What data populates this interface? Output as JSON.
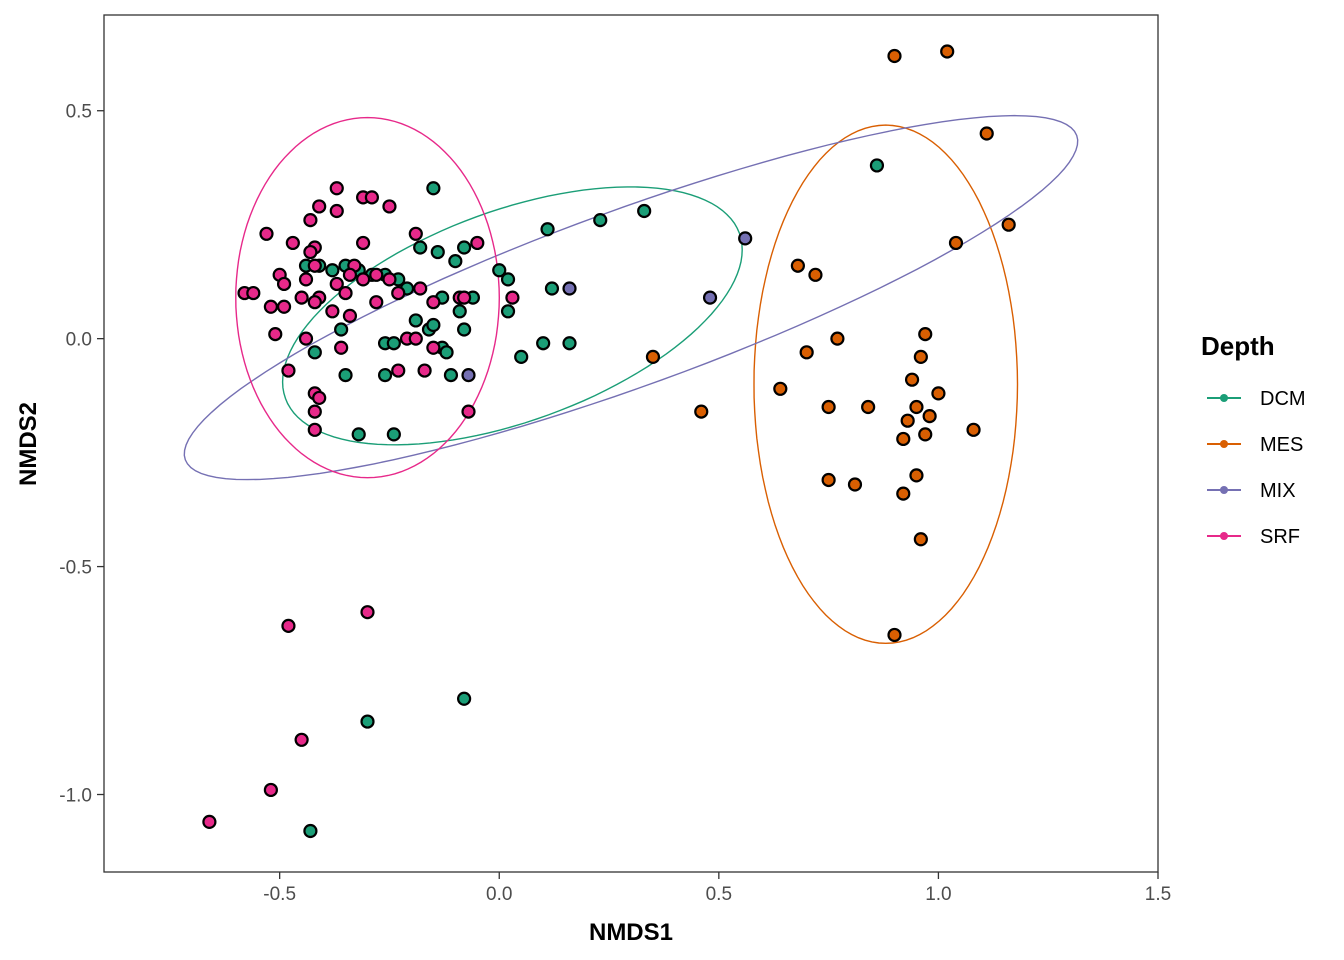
{
  "chart_data": {
    "type": "scatter",
    "xlabel": "NMDS1",
    "ylabel": "NMDS2",
    "xlim": [
      -0.9,
      1.5
    ],
    "ylim": [
      -1.17,
      0.71
    ],
    "x_ticks": [
      -0.5,
      0.0,
      0.5,
      1.0,
      1.5
    ],
    "x_tick_labels": [
      "-0.5",
      "0.0",
      "0.5",
      "1.0",
      "1.5"
    ],
    "y_ticks": [
      -1.0,
      -0.5,
      0.0,
      0.5
    ],
    "y_tick_labels": [
      "-1.0",
      "-0.5",
      "0.0",
      "0.5"
    ],
    "grid": false,
    "legend": {
      "title": "Depth",
      "position": "right"
    },
    "series": [
      {
        "name": "DCM",
        "color": "#1b9e77",
        "points": [
          [
            -0.15,
            0.33
          ],
          [
            0.23,
            0.26
          ],
          [
            0.33,
            0.28
          ],
          [
            0.11,
            0.24
          ],
          [
            0.86,
            0.38
          ],
          [
            -0.44,
            0.16
          ],
          [
            -0.41,
            0.16
          ],
          [
            -0.38,
            0.15
          ],
          [
            -0.35,
            0.16
          ],
          [
            -0.32,
            0.15
          ],
          [
            -0.29,
            0.14
          ],
          [
            -0.26,
            0.14
          ],
          [
            -0.23,
            0.13
          ],
          [
            -0.21,
            0.11
          ],
          [
            -0.18,
            0.2
          ],
          [
            -0.14,
            0.19
          ],
          [
            -0.1,
            0.17
          ],
          [
            -0.08,
            0.2
          ],
          [
            -0.06,
            0.09
          ],
          [
            -0.13,
            0.09
          ],
          [
            -0.19,
            0.04
          ],
          [
            -0.16,
            0.02
          ],
          [
            -0.15,
            0.03
          ],
          [
            -0.13,
            -0.02
          ],
          [
            -0.12,
            -0.03
          ],
          [
            -0.09,
            0.06
          ],
          [
            -0.08,
            0.02
          ],
          [
            -0.36,
            0.02
          ],
          [
            -0.26,
            -0.01
          ],
          [
            -0.24,
            -0.01
          ],
          [
            -0.26,
            -0.08
          ],
          [
            -0.35,
            -0.08
          ],
          [
            -0.11,
            -0.08
          ],
          [
            -0.42,
            -0.03
          ],
          [
            -0.32,
            -0.21
          ],
          [
            -0.24,
            -0.21
          ],
          [
            0.0,
            0.15
          ],
          [
            0.02,
            0.13
          ],
          [
            0.02,
            0.06
          ],
          [
            0.12,
            0.11
          ],
          [
            0.05,
            -0.04
          ],
          [
            0.1,
            -0.01
          ],
          [
            0.16,
            -0.01
          ],
          [
            -0.3,
            -0.84
          ],
          [
            -0.43,
            -1.08
          ],
          [
            -0.08,
            -0.79
          ]
        ]
      },
      {
        "name": "MES",
        "color": "#d95f02",
        "points": [
          [
            0.9,
            0.62
          ],
          [
            1.02,
            0.63
          ],
          [
            1.11,
            0.45
          ],
          [
            1.16,
            0.25
          ],
          [
            1.04,
            0.21
          ],
          [
            0.68,
            0.16
          ],
          [
            0.72,
            0.14
          ],
          [
            0.35,
            -0.04
          ],
          [
            0.46,
            -0.16
          ],
          [
            0.64,
            -0.11
          ],
          [
            0.7,
            -0.03
          ],
          [
            0.77,
            0.0
          ],
          [
            0.75,
            -0.15
          ],
          [
            0.84,
            -0.15
          ],
          [
            0.75,
            -0.31
          ],
          [
            0.81,
            -0.32
          ],
          [
            0.97,
            0.01
          ],
          [
            0.96,
            -0.04
          ],
          [
            0.94,
            -0.09
          ],
          [
            0.95,
            -0.15
          ],
          [
            0.93,
            -0.18
          ],
          [
            0.92,
            -0.22
          ],
          [
            0.97,
            -0.21
          ],
          [
            0.98,
            -0.17
          ],
          [
            1.0,
            -0.12
          ],
          [
            1.08,
            -0.2
          ],
          [
            0.95,
            -0.3
          ],
          [
            0.92,
            -0.34
          ],
          [
            0.96,
            -0.44
          ],
          [
            0.9,
            -0.65
          ]
        ]
      },
      {
        "name": "MIX",
        "color": "#7570b3",
        "points": [
          [
            0.56,
            0.22
          ],
          [
            0.48,
            0.09
          ],
          [
            0.16,
            0.11
          ],
          [
            -0.07,
            -0.08
          ]
        ]
      },
      {
        "name": "SRF",
        "color": "#e7298a",
        "points": [
          [
            -0.37,
            0.33
          ],
          [
            -0.31,
            0.31
          ],
          [
            -0.29,
            0.31
          ],
          [
            -0.25,
            0.29
          ],
          [
            -0.41,
            0.29
          ],
          [
            -0.43,
            0.26
          ],
          [
            -0.37,
            0.28
          ],
          [
            -0.53,
            0.23
          ],
          [
            -0.47,
            0.21
          ],
          [
            -0.42,
            0.2
          ],
          [
            -0.43,
            0.19
          ],
          [
            -0.31,
            0.21
          ],
          [
            -0.19,
            0.23
          ],
          [
            -0.05,
            0.21
          ],
          [
            -0.42,
            0.16
          ],
          [
            -0.33,
            0.16
          ],
          [
            -0.34,
            0.14
          ],
          [
            -0.5,
            0.14
          ],
          [
            -0.44,
            0.13
          ],
          [
            -0.37,
            0.12
          ],
          [
            -0.31,
            0.13
          ],
          [
            -0.28,
            0.14
          ],
          [
            -0.25,
            0.13
          ],
          [
            -0.49,
            0.12
          ],
          [
            -0.58,
            0.1
          ],
          [
            -0.56,
            0.1
          ],
          [
            -0.45,
            0.09
          ],
          [
            -0.41,
            0.09
          ],
          [
            -0.35,
            0.1
          ],
          [
            -0.23,
            0.1
          ],
          [
            -0.18,
            0.11
          ],
          [
            -0.09,
            0.09
          ],
          [
            0.03,
            0.09
          ],
          [
            -0.52,
            0.07
          ],
          [
            -0.49,
            0.07
          ],
          [
            -0.42,
            0.08
          ],
          [
            -0.38,
            0.06
          ],
          [
            -0.34,
            0.05
          ],
          [
            -0.28,
            0.08
          ],
          [
            -0.15,
            0.08
          ],
          [
            -0.08,
            0.09
          ],
          [
            -0.51,
            0.01
          ],
          [
            -0.44,
            0.0
          ],
          [
            -0.36,
            -0.02
          ],
          [
            -0.21,
            0.0
          ],
          [
            -0.19,
            0.0
          ],
          [
            -0.15,
            -0.02
          ],
          [
            -0.48,
            -0.07
          ],
          [
            -0.23,
            -0.07
          ],
          [
            -0.17,
            -0.07
          ],
          [
            -0.42,
            -0.12
          ],
          [
            -0.41,
            -0.13
          ],
          [
            -0.42,
            -0.16
          ],
          [
            -0.07,
            -0.16
          ],
          [
            -0.42,
            -0.2
          ],
          [
            -0.48,
            -0.63
          ],
          [
            -0.3,
            -0.6
          ],
          [
            -0.45,
            -0.88
          ],
          [
            -0.52,
            -0.99
          ],
          [
            -0.66,
            -1.06
          ]
        ]
      }
    ],
    "ellipses": [
      {
        "group": "DCM",
        "color": "#1b9e77",
        "cx": 0.03,
        "cy": 0.05,
        "rx": 0.55,
        "ry": 0.24,
        "angle_deg": 20
      },
      {
        "group": "MES",
        "color": "#d95f02",
        "cx": 0.88,
        "cy": -0.1,
        "rx": 0.3,
        "ry": 0.59,
        "angle_deg": 0
      },
      {
        "group": "MIX",
        "color": "#7570b3",
        "cx": 0.3,
        "cy": 0.09,
        "rx": 1.08,
        "ry": 0.2,
        "angle_deg": 20
      },
      {
        "group": "SRF",
        "color": "#e7298a",
        "cx": -0.3,
        "cy": 0.09,
        "rx": 0.3,
        "ry": 0.41,
        "angle_deg": 0
      }
    ]
  }
}
